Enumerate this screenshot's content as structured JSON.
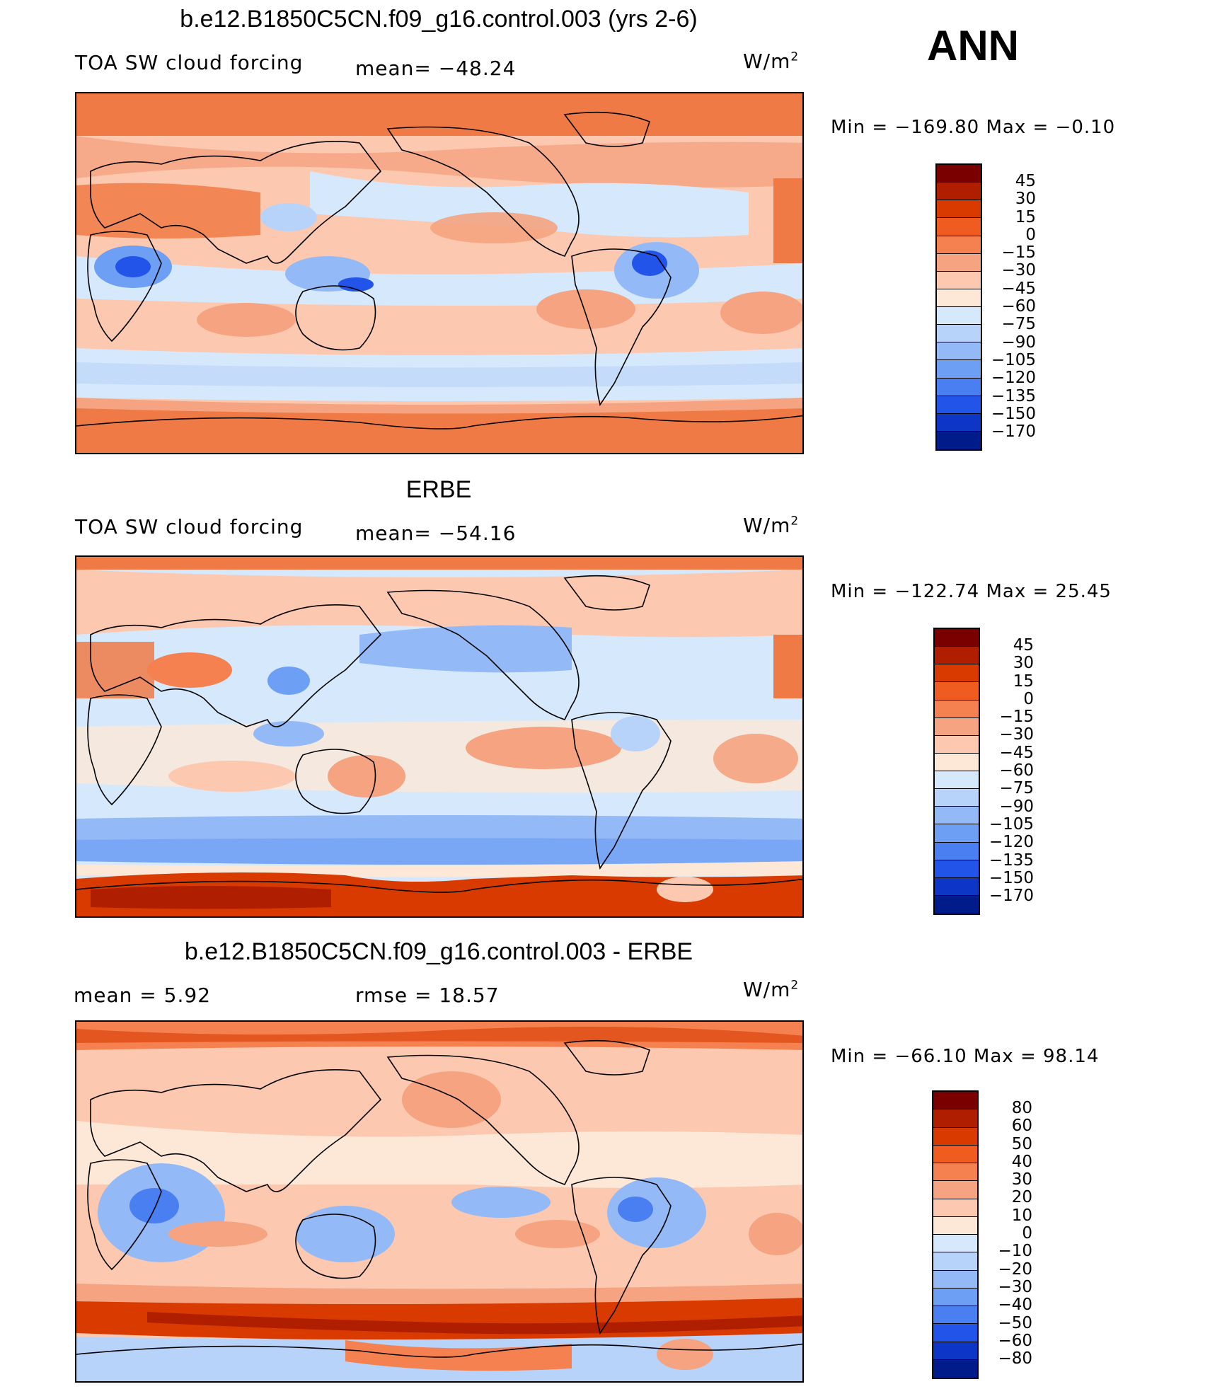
{
  "season": "ANN",
  "panels": [
    {
      "title": "b.e12.B1850C5CN.f09_g16.control.003 (yrs 2-6)",
      "variable": "TOA SW cloud forcing",
      "mean": "mean= −48.24",
      "units_base": "W/m",
      "units_exp": "2",
      "minmax": "Min  =  −169.80  Max  =    −0.10",
      "colorbar": {
        "colors": [
          "#7a0000",
          "#b01e00",
          "#d83a00",
          "#f05c20",
          "#f58050",
          "#f5a380",
          "#fcc8b0",
          "#fde8d8",
          "#d6e8fb",
          "#b7d3fa",
          "#93b9f7",
          "#6d9ff5",
          "#4a7ff2",
          "#2254ea",
          "#0d36c7",
          "#001c8a"
        ],
        "labels": [
          "45",
          "30",
          "15",
          "0",
          "−15",
          "−30",
          "−45",
          "−60",
          "−75",
          "−90",
          "−105",
          "−120",
          "−135",
          "−150",
          "−170"
        ]
      }
    },
    {
      "title": "ERBE",
      "variable": "TOA SW cloud forcing",
      "mean": "mean= −54.16",
      "units_base": "W/m",
      "units_exp": "2",
      "minmax": "Min  =  −122.74  Max  =    25.45",
      "colorbar": {
        "colors": [
          "#7a0000",
          "#b01e00",
          "#d83a00",
          "#f05c20",
          "#f58050",
          "#f5a380",
          "#fcc8b0",
          "#fde8d8",
          "#d6e8fb",
          "#b7d3fa",
          "#93b9f7",
          "#6d9ff5",
          "#4a7ff2",
          "#2254ea",
          "#0d36c7",
          "#001c8a"
        ],
        "labels": [
          "45",
          "30",
          "15",
          "0",
          "−15",
          "−30",
          "−45",
          "−60",
          "−75",
          "−90",
          "−105",
          "−120",
          "−135",
          "−150",
          "−170"
        ]
      }
    },
    {
      "title": "b.e12.B1850C5CN.f09_g16.control.003 - ERBE",
      "mean": "mean  =      5.92",
      "rmse": "rmse  =    18.57",
      "units_base": "W/m",
      "units_exp": "2",
      "minmax": "Min  =  −66.10  Max  =    98.14",
      "colorbar": {
        "colors": [
          "#7a0000",
          "#b01e00",
          "#d83a00",
          "#f05c20",
          "#f58050",
          "#f5a380",
          "#fcc8b0",
          "#fde8d8",
          "#d6e8fb",
          "#b7d3fa",
          "#93b9f7",
          "#6d9ff5",
          "#4a7ff2",
          "#2254ea",
          "#0d36c7",
          "#001c8a"
        ],
        "labels": [
          "80",
          "60",
          "50",
          "40",
          "30",
          "20",
          "10",
          "0",
          "−10",
          "−20",
          "−30",
          "−40",
          "−50",
          "−60",
          "−80"
        ]
      }
    }
  ],
  "map_colors": {
    "polar_warm": "#f07a45",
    "warm_mid": "#f5a380",
    "warm_light": "#fcc8b0",
    "neutral": "#fde8d8",
    "cool_light": "#d6e8fb",
    "cool_mid": "#b7d3fa",
    "cool_strong": "#6d9ff5",
    "deep_blue": "#2254ea",
    "deep_red": "#c03010",
    "coast": "#000000"
  }
}
